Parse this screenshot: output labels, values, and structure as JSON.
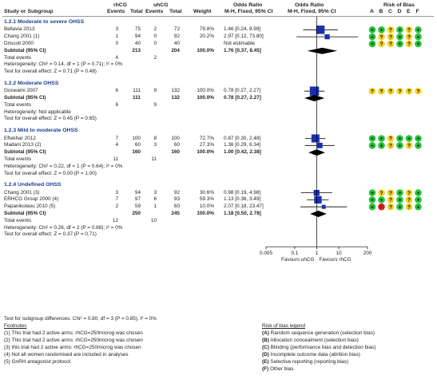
{
  "header": {
    "study": "Study or Subgroup",
    "group1": "rhCG",
    "group2": "uhCG",
    "events": "Events",
    "total": "Total",
    "weight": "Weight",
    "or_title": "Odds Ratio",
    "or_method": "M-H, Fixed, 95% CI",
    "or_title2": "Odds Ratio",
    "or_method2": "M-H, Fixed, 95% CI",
    "rob_title": "Risk of Bias",
    "rob_letters": [
      "A",
      "B",
      "C",
      "D",
      "E",
      "F"
    ]
  },
  "subgroups": [
    {
      "title": "1.2.1 Moderate to severe OHSS",
      "studies": [
        {
          "name": "Bellavia 2013",
          "e1": "3",
          "n1": "75",
          "e2": "2",
          "n2": "72",
          "weight": "79.8%",
          "ci_text": "1.46 [0.24, 8.99]",
          "or": 1.46,
          "lo": 0.24,
          "hi": 8.99,
          "w": 79.8,
          "rob": [
            "+",
            "+",
            "?",
            "+",
            "?",
            "+"
          ]
        },
        {
          "name": "Chang 2001 (1)",
          "e1": "1",
          "n1": "94",
          "e2": "0",
          "n2": "92",
          "weight": "20.2%",
          "ci_text": "2.97 [0.12, 73.80]",
          "or": 2.97,
          "lo": 0.12,
          "hi": 73.8,
          "w": 20.2,
          "rob": [
            "+",
            "?",
            "?",
            "+",
            "?",
            "+"
          ]
        },
        {
          "name": "Driscoll 2000",
          "e1": "0",
          "n1": "40",
          "e2": "0",
          "n2": "40",
          "weight": "",
          "ci_text": "Not estimable",
          "or": null,
          "lo": null,
          "hi": null,
          "w": 0,
          "rob": [
            "+",
            "?",
            "?",
            "+",
            "?",
            "+"
          ]
        }
      ],
      "subtotal_label": "Subtotal (95% CI)",
      "sub_n1": "213",
      "sub_n2": "204",
      "sub_weight": "100.0%",
      "sub_ci_text": "1.76 [0.37, 8.45]",
      "sub_or": 1.76,
      "sub_lo": 0.37,
      "sub_hi": 8.45,
      "events_label": "Total events",
      "tot_e1": "4",
      "tot_e2": "2",
      "het": "Heterogeneity: Chi² = 0.14, df = 1 (P = 0.71); I² = 0%",
      "effect": "Test for overall effect: Z = 0.71 (P = 0.48)"
    },
    {
      "title": "1.2.2 Moderate OHSS",
      "studies": [
        {
          "name": "Goswami 2007",
          "e1": "6",
          "n1": "111",
          "e2": "9",
          "n2": "132",
          "weight": "100.0%",
          "ci_text": "0.78 [0.27, 2.27]",
          "or": 0.78,
          "lo": 0.27,
          "hi": 2.27,
          "w": 100,
          "rob": [
            "?",
            "?",
            "?",
            "?",
            "?",
            "?"
          ]
        }
      ],
      "subtotal_label": "Subtotal (95% CI)",
      "sub_n1": "111",
      "sub_n2": "132",
      "sub_weight": "100.0%",
      "sub_ci_text": "0.78 [0.27, 2.27]",
      "sub_or": 0.78,
      "sub_lo": 0.27,
      "sub_hi": 2.27,
      "events_label": "Total events",
      "tot_e1": "6",
      "tot_e2": "9",
      "het": "Heterogeneity: Not applicable",
      "effect": "Test for overall effect: Z = 0.45 (P = 0.65)"
    },
    {
      "title": "1.2.3 Mild to moderate OHSS",
      "studies": [
        {
          "name": "Eftekhar 2012",
          "e1": "7",
          "n1": "100",
          "e2": "8",
          "n2": "100",
          "weight": "72.7%",
          "ci_text": "0.87 [0.30, 2.48]",
          "or": 0.87,
          "lo": 0.3,
          "hi": 2.48,
          "w": 72.7,
          "rob": [
            "+",
            "+",
            "?",
            "+",
            "+",
            "+"
          ]
        },
        {
          "name": "Madani 2013 (2)",
          "e1": "4",
          "n1": "60",
          "e2": "3",
          "n2": "60",
          "weight": "27.3%",
          "ci_text": "1.36 [0.29, 6.34]",
          "or": 1.36,
          "lo": 0.29,
          "hi": 6.34,
          "w": 27.3,
          "rob": [
            "+",
            "+",
            "?",
            "+",
            "?",
            "+"
          ]
        }
      ],
      "subtotal_label": "Subtotal (95% CI)",
      "sub_n1": "160",
      "sub_n2": "160",
      "sub_weight": "100.0%",
      "sub_ci_text": "1.00 [0.42, 2.38]",
      "sub_or": 1.0,
      "sub_lo": 0.42,
      "sub_hi": 2.38,
      "events_label": "Total events",
      "tot_e1": "11",
      "tot_e2": "11",
      "het": "Heterogeneity: Chi² = 0.22, df = 1 (P = 0.64); I² = 0%",
      "effect": "Test for overall effect: Z = 0.00 (P = 1.00)"
    },
    {
      "title": "1.2.4 Undefined OHSS",
      "studies": [
        {
          "name": "Chang 2001 (3)",
          "e1": "3",
          "n1": "94",
          "e2": "3",
          "n2": "92",
          "weight": "30.6%",
          "ci_text": "0.98 [0.19, 4.98]",
          "or": 0.98,
          "lo": 0.19,
          "hi": 4.98,
          "w": 30.6,
          "rob": [
            "+",
            "?",
            "?",
            "+",
            "?",
            "+"
          ]
        },
        {
          "name": "ERHCG Group 2000 (4)",
          "e1": "7",
          "n1": "97",
          "e2": "6",
          "n2": "93",
          "weight": "59.3%",
          "ci_text": "1.13 [0.36, 3.49]",
          "or": 1.13,
          "lo": 0.36,
          "hi": 3.49,
          "w": 59.3,
          "rob": [
            "+",
            "+",
            "?",
            "+",
            "?",
            "+"
          ]
        },
        {
          "name": "Papanikolaou 2010 (5)",
          "e1": "2",
          "n1": "59",
          "e2": "1",
          "n2": "60",
          "weight": "10.0%",
          "ci_text": "2.07 [0.18, 23.47]",
          "or": 2.07,
          "lo": 0.18,
          "hi": 23.47,
          "w": 10.0,
          "rob": [
            "+",
            "-",
            "?",
            "+",
            "?",
            "+"
          ]
        }
      ],
      "subtotal_label": "Subtotal (95% CI)",
      "sub_n1": "250",
      "sub_n2": "245",
      "sub_weight": "100.0%",
      "sub_ci_text": "1.18 [0.50, 2.78]",
      "sub_or": 1.18,
      "sub_lo": 0.5,
      "sub_hi": 2.78,
      "events_label": "Total events",
      "tot_e1": "12",
      "tot_e2": "10",
      "het": "Heterogeneity: Chi² = 0.26, df = 2 (P = 0.88); I² = 0%",
      "effect": "Test for overall effect: Z = 0.37 (P = 0.71)"
    }
  ],
  "subgroup_test": "Test for subgroup differences: Chi² = 0.80, df = 3 (P = 0.85), I² = 0%",
  "footnotes": {
    "title": "Footnotes",
    "items": [
      "(1) This trial had 2 active arms: rhCG=250microg was chosen",
      "(2) This trial had 2 active arms: rhCG=250microg was chosen",
      "(3) this trial had 2 active arms: rhCG=250microg was chosen",
      "(4) Not all women randomised are included in analyses",
      "(5) GnRH antagonist protocol"
    ]
  },
  "legend": {
    "title": "Risk of bias legend",
    "items": [
      {
        "letter": "(A)",
        "text": " Random sequence generation (selection bias)"
      },
      {
        "letter": "(B)",
        "text": " Allocation concealment (selection bias)"
      },
      {
        "letter": "(C)",
        "text": " Blinding (performance bias and detection bias)"
      },
      {
        "letter": "(D)",
        "text": " Incomplete outcome data (attrition bias)"
      },
      {
        "letter": "(E)",
        "text": " Selective reporting (reporting bias)"
      },
      {
        "letter": "(F)",
        "text": " Other bias"
      }
    ]
  },
  "chart_data": {
    "type": "scatter",
    "title": "",
    "xlabel": "",
    "ylabel": "",
    "x_scale": "log",
    "xlim": [
      0.005,
      200
    ],
    "x_ticks": [
      "0.005",
      "0.1",
      "1",
      "10",
      "200"
    ],
    "x_tick_values": [
      0.005,
      0.1,
      1,
      10,
      200
    ],
    "favours_left": "Favours uhCG",
    "favours_right": "Favours rhCG",
    "null_line": 1,
    "colors": {
      "study_marker": "#1a2fb0",
      "diamond": "#000000",
      "low_risk": "#27c23a",
      "unclear_risk": "#f2d22a",
      "high_risk": "#d12020"
    }
  }
}
